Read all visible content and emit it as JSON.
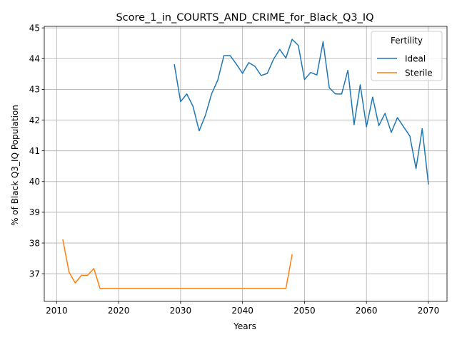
{
  "chart_data": {
    "type": "line",
    "title": "Score_1_in_COURTS_AND_CRIME_for_Black_Q3_IQ",
    "xlabel": "Years",
    "ylabel": "% of Black Q3_IQ Population",
    "xlim": [
      2008,
      2073
    ],
    "ylim": [
      36.1,
      45.05
    ],
    "xticks": [
      2010,
      2020,
      2030,
      2040,
      2050,
      2060,
      2070
    ],
    "yticks": [
      37,
      38,
      39,
      40,
      41,
      42,
      43,
      44,
      45
    ],
    "grid": true,
    "legend": {
      "title": "Fertility",
      "position": "top-right"
    },
    "series": [
      {
        "name": "Ideal",
        "color": "#1f77b4",
        "x": [
          2029,
          2030,
          2031,
          2032,
          2033,
          2034,
          2035,
          2036,
          2037,
          2038,
          2039,
          2040,
          2041,
          2042,
          2043,
          2044,
          2045,
          2046,
          2047,
          2048,
          2049,
          2050,
          2051,
          2052,
          2053,
          2054,
          2055,
          2056,
          2057,
          2058,
          2059,
          2060,
          2061,
          2062,
          2063,
          2064,
          2065,
          2066,
          2067,
          2068,
          2069,
          2070
        ],
        "y": [
          43.8,
          42.6,
          42.85,
          42.45,
          41.65,
          42.15,
          42.85,
          43.3,
          44.1,
          44.1,
          43.82,
          43.52,
          43.87,
          43.75,
          43.45,
          43.52,
          43.98,
          44.3,
          44.02,
          44.63,
          44.43,
          43.32,
          43.55,
          43.47,
          44.55,
          43.05,
          42.85,
          42.85,
          43.62,
          41.85,
          43.15,
          41.78,
          42.75,
          41.82,
          42.22,
          41.6,
          42.08,
          41.78,
          41.48,
          40.42,
          41.72,
          39.92
        ]
      },
      {
        "name": "Sterile",
        "color": "#ff7f0e",
        "x": [
          2011,
          2012,
          2013,
          2014,
          2015,
          2016,
          2017,
          2018,
          2019,
          2020,
          2021,
          2022,
          2023,
          2024,
          2025,
          2026,
          2027,
          2028,
          2029,
          2030,
          2031,
          2032,
          2033,
          2034,
          2035,
          2036,
          2037,
          2038,
          2039,
          2040,
          2041,
          2042,
          2043,
          2044,
          2045,
          2046,
          2047,
          2048
        ],
        "y": [
          38.1,
          37.05,
          36.7,
          36.95,
          36.95,
          37.17,
          36.52,
          36.52,
          36.52,
          36.52,
          36.52,
          36.52,
          36.52,
          36.52,
          36.52,
          36.52,
          36.52,
          36.52,
          36.52,
          36.52,
          36.52,
          36.52,
          36.52,
          36.52,
          36.52,
          36.52,
          36.52,
          36.52,
          36.52,
          36.52,
          36.52,
          36.52,
          36.52,
          36.52,
          36.52,
          36.52,
          36.52,
          37.62
        ]
      }
    ]
  }
}
